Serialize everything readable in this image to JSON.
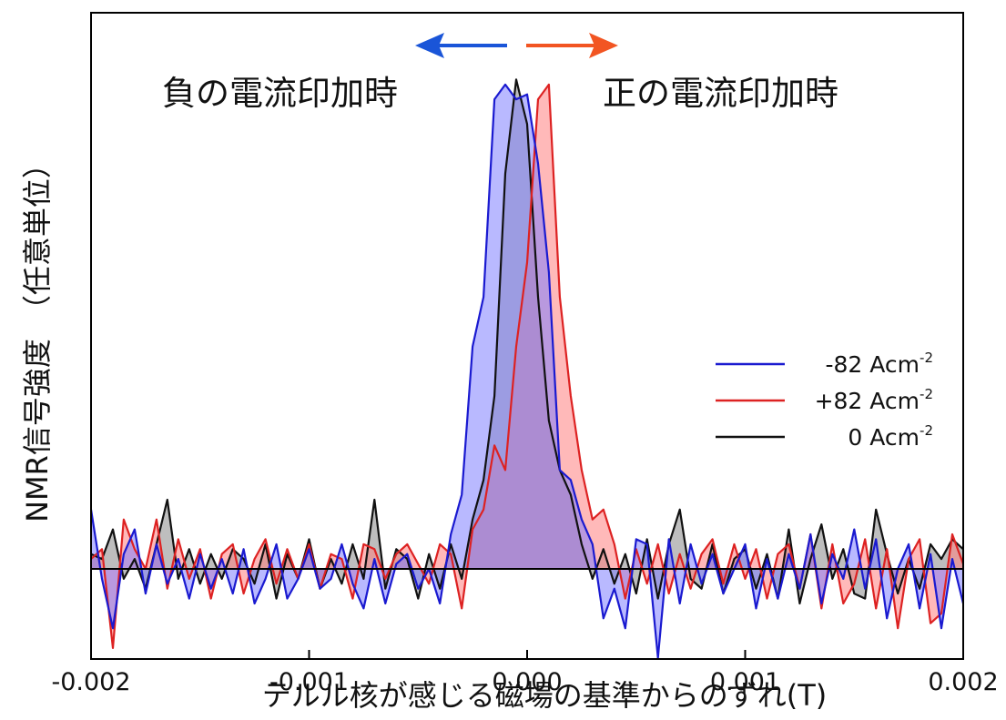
{
  "chart_data": {
    "type": "area",
    "title": "",
    "xlabel": "テルル核が感じる磁場の基準からのずれ(T)",
    "ylabel": "NMR信号強度　（任意単位）",
    "xlim": [
      -0.002,
      0.002
    ],
    "ylim": [
      -0.2,
      1.0
    ],
    "x_ticks": [
      -0.002,
      -0.001,
      0.0,
      0.001,
      0.002
    ],
    "x_tick_labels": [
      "-0.002",
      "-0.001",
      "0.000",
      "0.001",
      "0.002"
    ],
    "grid": false,
    "legend_position": "right",
    "annotations": {
      "negative": "負の電流印加時",
      "positive": "正の電流印加時"
    },
    "colors": {
      "negative": "#1a1ad0",
      "positive": "#dd2222",
      "zero": "#111111",
      "negative_fill": "#8080ff",
      "positive_fill": "#ff8080",
      "zero_fill": "#888888",
      "arrow_negative": "#1a55d8",
      "arrow_positive": "#f25522"
    },
    "series": [
      {
        "key": "negative",
        "name": "-82 Acm-2",
        "legend_main": "-82 Acm",
        "legend_sup": "-2",
        "x": [
          -0.002,
          -0.00195,
          -0.0019,
          -0.00185,
          -0.0018,
          -0.00175,
          -0.0017,
          -0.00165,
          -0.0016,
          -0.00155,
          -0.0015,
          -0.00145,
          -0.0014,
          -0.00135,
          -0.0013,
          -0.00125,
          -0.0012,
          -0.00115,
          -0.0011,
          -0.00105,
          -0.001,
          -0.00095,
          -0.0009,
          -0.00085,
          -0.0008,
          -0.00075,
          -0.0007,
          -0.00065,
          -0.0006,
          -0.00055,
          -0.0005,
          -0.00045,
          -0.0004,
          -0.00035,
          -0.0003,
          -0.00025,
          -0.0002,
          -0.00015,
          -0.0001,
          -5e-05,
          0.0,
          5e-05,
          0.0001,
          0.00015,
          0.0002,
          0.00025,
          0.0003,
          0.00035,
          0.0004,
          0.00045,
          0.0005,
          0.00055,
          0.0006,
          0.00065,
          0.0007,
          0.00075,
          0.0008,
          0.00085,
          0.0009,
          0.00095,
          0.001,
          0.00105,
          0.0011,
          0.00115,
          0.0012,
          0.00125,
          0.0013,
          0.00135,
          0.0014,
          0.00145,
          0.0015,
          0.00155,
          0.0016,
          0.00165,
          0.0017,
          0.00175,
          0.0018,
          0.00185,
          0.0019,
          0.00195,
          0.002
        ],
        "y": [
          0.12,
          -0.02,
          -0.12,
          0.03,
          0.08,
          -0.05,
          0.05,
          -0.03,
          0.02,
          -0.06,
          0.03,
          -0.04,
          0.02,
          -0.05,
          0.04,
          -0.07,
          -0.02,
          0.05,
          -0.06,
          -0.02,
          0.04,
          -0.04,
          -0.02,
          0.05,
          -0.03,
          -0.08,
          0.02,
          -0.07,
          0.01,
          0.03,
          -0.04,
          0.0,
          -0.07,
          0.07,
          0.15,
          0.45,
          0.55,
          0.95,
          0.98,
          0.95,
          0.96,
          0.82,
          0.6,
          0.2,
          0.18,
          0.1,
          0.05,
          -0.1,
          -0.04,
          -0.12,
          0.06,
          0.05,
          -0.18,
          0.06,
          -0.07,
          0.05,
          -0.03,
          0.03,
          -0.05,
          0.0,
          0.05,
          -0.08,
          0.02,
          -0.06,
          0.03,
          -0.04,
          0.07,
          -0.07,
          0.03,
          -0.02,
          0.08,
          -0.04,
          0.06,
          -0.1,
          0.0,
          0.05,
          -0.08,
          0.03,
          -0.12,
          0.02,
          -0.07
        ]
      },
      {
        "key": "positive",
        "name": "+82 Acm-2",
        "legend_main": "+82 Acm",
        "legend_sup": "-2",
        "x": [
          -0.002,
          -0.00195,
          -0.0019,
          -0.00185,
          -0.0018,
          -0.00175,
          -0.0017,
          -0.00165,
          -0.0016,
          -0.00155,
          -0.0015,
          -0.00145,
          -0.0014,
          -0.00135,
          -0.0013,
          -0.00125,
          -0.0012,
          -0.00115,
          -0.0011,
          -0.00105,
          -0.001,
          -0.00095,
          -0.0009,
          -0.00085,
          -0.0008,
          -0.00075,
          -0.0007,
          -0.00065,
          -0.0006,
          -0.00055,
          -0.0005,
          -0.00045,
          -0.0004,
          -0.00035,
          -0.0003,
          -0.00025,
          -0.0002,
          -0.00015,
          -0.0001,
          -5e-05,
          0.0,
          5e-05,
          0.0001,
          0.00015,
          0.0002,
          0.00025,
          0.0003,
          0.00035,
          0.0004,
          0.00045,
          0.0005,
          0.00055,
          0.0006,
          0.00065,
          0.0007,
          0.00075,
          0.0008,
          0.00085,
          0.0009,
          0.00095,
          0.001,
          0.00105,
          0.0011,
          0.00115,
          0.0012,
          0.00125,
          0.0013,
          0.00135,
          0.0014,
          0.00145,
          0.0015,
          0.00155,
          0.0016,
          0.00165,
          0.0017,
          0.00175,
          0.0018,
          0.00185,
          0.0019,
          0.00195,
          0.002
        ],
        "y": [
          0.02,
          0.04,
          -0.16,
          0.1,
          0.04,
          0.0,
          0.1,
          -0.04,
          0.06,
          -0.02,
          0.04,
          -0.06,
          0.03,
          0.05,
          -0.05,
          0.02,
          0.06,
          -0.03,
          0.04,
          -0.02,
          0.05,
          -0.04,
          0.03,
          0.02,
          -0.06,
          0.05,
          0.04,
          -0.02,
          0.03,
          0.05,
          0.01,
          -0.03,
          0.05,
          0.03,
          -0.08,
          0.08,
          0.12,
          0.25,
          0.2,
          0.45,
          0.62,
          0.95,
          0.98,
          0.55,
          0.35,
          0.2,
          0.1,
          0.12,
          0.05,
          -0.06,
          0.04,
          -0.03,
          0.05,
          -0.05,
          0.03,
          -0.04,
          0.03,
          0.06,
          -0.03,
          0.05,
          -0.02,
          0.04,
          -0.06,
          0.03,
          0.05,
          -0.04,
          0.07,
          -0.08,
          0.05,
          -0.07,
          -0.03,
          0.06,
          -0.08,
          0.04,
          -0.12,
          0.02,
          0.06,
          -0.11,
          -0.09,
          0.07,
          0.01
        ]
      },
      {
        "key": "zero",
        "name": "0 Acm-2",
        "legend_main": "0 Acm",
        "legend_sup": "-2",
        "x": [
          -0.002,
          -0.00195,
          -0.0019,
          -0.00185,
          -0.0018,
          -0.00175,
          -0.0017,
          -0.00165,
          -0.0016,
          -0.00155,
          -0.0015,
          -0.00145,
          -0.0014,
          -0.00135,
          -0.0013,
          -0.00125,
          -0.0012,
          -0.00115,
          -0.0011,
          -0.00105,
          -0.001,
          -0.00095,
          -0.0009,
          -0.00085,
          -0.0008,
          -0.00075,
          -0.0007,
          -0.00065,
          -0.0006,
          -0.00055,
          -0.0005,
          -0.00045,
          -0.0004,
          -0.00035,
          -0.0003,
          -0.00025,
          -0.0002,
          -0.00015,
          -0.0001,
          -5e-05,
          0.0,
          5e-05,
          0.0001,
          0.00015,
          0.0002,
          0.00025,
          0.0003,
          0.00035,
          0.0004,
          0.00045,
          0.0005,
          0.00055,
          0.0006,
          0.00065,
          0.0007,
          0.00075,
          0.0008,
          0.00085,
          0.0009,
          0.00095,
          0.001,
          0.00105,
          0.0011,
          0.00115,
          0.0012,
          0.00125,
          0.0013,
          0.00135,
          0.0014,
          0.00145,
          0.0015,
          0.00155,
          0.0016,
          0.00165,
          0.0017,
          0.00175,
          0.0018,
          0.00185,
          0.0019,
          0.00195,
          0.002
        ],
        "y": [
          0.03,
          0.02,
          0.08,
          -0.02,
          0.02,
          -0.04,
          0.05,
          0.14,
          -0.02,
          0.04,
          -0.03,
          0.03,
          -0.02,
          0.04,
          0.02,
          -0.03,
          0.05,
          -0.06,
          0.03,
          -0.02,
          0.06,
          -0.04,
          0.02,
          -0.03,
          0.05,
          -0.02,
          0.14,
          -0.04,
          0.04,
          0.02,
          -0.06,
          0.03,
          -0.04,
          0.05,
          -0.02,
          0.1,
          0.18,
          0.35,
          0.8,
          0.99,
          0.9,
          0.55,
          0.3,
          0.2,
          0.15,
          0.05,
          -0.02,
          0.04,
          -0.03,
          0.03,
          -0.05,
          0.06,
          -0.06,
          0.05,
          0.12,
          -0.02,
          -0.04,
          0.05,
          -0.05,
          0.02,
          0.04,
          -0.04,
          0.03,
          -0.06,
          0.08,
          -0.07,
          0.02,
          0.09,
          -0.02,
          0.04,
          -0.05,
          -0.06,
          0.12,
          0.03,
          -0.05,
          0.02,
          -0.04,
          0.05,
          0.02,
          0.06,
          0.04
        ]
      }
    ]
  }
}
